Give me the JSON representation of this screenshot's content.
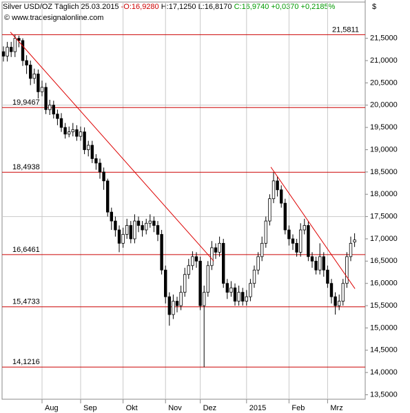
{
  "chart_data": {
    "type": "candlestick",
    "header": {
      "symbol": "Silver USD/OZ Täglich",
      "date": "25.03.2015",
      "open": "-O:16,9280",
      "high": "H:17,1250",
      "low": "L:16,8170",
      "close": "C:16,9740",
      "change": "+0,0370",
      "change_pct": "+0,2185%"
    },
    "source": "© www.tradesignalonline.com",
    "y_unit": "$",
    "ylim": [
      13.4,
      22.36
    ],
    "yticks": [
      {
        "value": 13.5,
        "label": "13,5000"
      },
      {
        "value": 14,
        "label": "14,0000"
      },
      {
        "value": 14.5,
        "label": "14,5000"
      },
      {
        "value": 15,
        "label": "15,0000"
      },
      {
        "value": 15.5,
        "label": "15,5000"
      },
      {
        "value": 16,
        "label": "16,0000"
      },
      {
        "value": 16.5,
        "label": "16,5000"
      },
      {
        "value": 17,
        "label": "17,0000"
      },
      {
        "value": 17.5,
        "label": "17,5000"
      },
      {
        "value": 18,
        "label": "18,0000"
      },
      {
        "value": 18.5,
        "label": "18,5000"
      },
      {
        "value": 19,
        "label": "19,0000"
      },
      {
        "value": 19.5,
        "label": "19,5000"
      },
      {
        "value": 20,
        "label": "20,0000"
      },
      {
        "value": 20.5,
        "label": "20,5000"
      },
      {
        "value": 21,
        "label": "21,0000"
      },
      {
        "value": 21.5,
        "label": "21,5000"
      }
    ],
    "grid_values": [
      17.5,
      20
    ],
    "categories": [
      null,
      null,
      null,
      null,
      null,
      null,
      null,
      null,
      null,
      null,
      "Aug",
      null,
      null,
      null,
      null,
      null,
      null,
      null,
      null,
      null,
      "Sep",
      null,
      null,
      null,
      null,
      null,
      null,
      null,
      null,
      null,
      null,
      "Okt",
      null,
      null,
      null,
      null,
      null,
      null,
      null,
      null,
      null,
      null,
      "Nov",
      null,
      null,
      null,
      null,
      null,
      null,
      null,
      null,
      "Dez",
      null,
      null,
      null,
      null,
      null,
      null,
      null,
      null,
      null,
      null,
      null,
      "2015",
      null,
      null,
      null,
      null,
      null,
      null,
      null,
      null,
      null,
      null,
      "Feb",
      null,
      null,
      null,
      null,
      null,
      null,
      null,
      null,
      null,
      "Mrz",
      null,
      null,
      null,
      null,
      null,
      null,
      null
    ],
    "open": [
      21.2,
      21.1,
      21.3,
      21.2,
      21.5,
      21.45,
      21.0,
      20.9,
      20.6,
      20.7,
      20.3,
      20.4,
      19.9,
      20.0,
      19.8,
      19.7,
      19.5,
      19.35,
      19.4,
      19.45,
      19.3,
      19.4,
      19.0,
      19.1,
      18.8,
      18.7,
      18.5,
      18.3,
      17.6,
      17.4,
      17.2,
      16.9,
      17.1,
      17.3,
      17.0,
      17.4,
      17.3,
      17.2,
      17.35,
      17.4,
      17.3,
      17.1,
      16.3,
      15.7,
      15.3,
      15.6,
      15.5,
      15.8,
      16.2,
      16.4,
      16.6,
      16.5,
      15.5,
      15.8,
      16.4,
      16.8,
      16.7,
      16.9,
      16.0,
      15.8,
      15.9,
      15.6,
      15.8,
      15.6,
      15.7,
      16.0,
      16.3,
      16.6,
      16.9,
      17.4,
      17.9,
      18.3,
      18.1,
      17.8,
      17.2,
      17.0,
      16.9,
      16.7,
      17.2,
      17.3,
      16.6,
      16.5,
      16.3,
      16.6,
      16.3,
      16.0,
      15.7,
      15.5,
      15.6,
      16.0,
      16.6,
      16.928
    ],
    "high": [
      21.32,
      21.42,
      21.42,
      21.58,
      21.56,
      21.5,
      21.12,
      21.0,
      20.82,
      20.8,
      20.55,
      20.5,
      20.12,
      20.1,
      19.9,
      19.82,
      19.6,
      19.52,
      19.6,
      19.55,
      19.52,
      19.5,
      19.2,
      19.2,
      18.9,
      18.8,
      18.6,
      18.35,
      17.7,
      17.5,
      17.3,
      17.25,
      17.45,
      17.4,
      17.55,
      17.5,
      17.4,
      17.45,
      17.55,
      17.5,
      17.4,
      17.2,
      16.4,
      15.8,
      15.75,
      15.7,
      15.95,
      16.35,
      16.55,
      16.72,
      16.7,
      16.6,
      15.95,
      16.5,
      16.95,
      16.9,
      17.05,
      17.0,
      16.1,
      16.05,
      16.0,
      15.95,
      15.9,
      15.85,
      16.1,
      16.4,
      16.7,
      17.05,
      17.5,
      18.0,
      18.49,
      18.4,
      18.2,
      17.9,
      17.3,
      17.1,
      17.0,
      17.35,
      17.45,
      17.4,
      16.7,
      16.6,
      16.9,
      16.7,
      16.4,
      16.1,
      15.8,
      15.75,
      16.1,
      16.7,
      17.05,
      17.125
    ],
    "low": [
      20.98,
      20.98,
      21.08,
      21.08,
      21.3,
      20.88,
      20.7,
      20.45,
      20.48,
      20.15,
      20.2,
      19.8,
      19.78,
      19.7,
      19.55,
      19.4,
      19.25,
      19.28,
      19.3,
      19.2,
      19.2,
      18.9,
      18.85,
      18.7,
      18.55,
      18.35,
      18.1,
      17.5,
      17.2,
      17.05,
      16.7,
      16.8,
      17.0,
      16.9,
      16.9,
      17.15,
      17.05,
      17.1,
      17.25,
      17.15,
      16.95,
      16.2,
      15.55,
      15.05,
      15.2,
      15.35,
      15.4,
      15.7,
      16.1,
      16.3,
      16.35,
      15.4,
      14.12,
      15.7,
      16.3,
      16.55,
      16.6,
      15.9,
      15.65,
      15.7,
      15.5,
      15.5,
      15.5,
      15.5,
      15.6,
      15.9,
      16.2,
      16.5,
      16.8,
      17.3,
      17.8,
      17.95,
      17.7,
      17.1,
      16.85,
      16.75,
      16.6,
      16.6,
      17.1,
      16.5,
      16.35,
      16.2,
      16.2,
      16.15,
      15.9,
      15.55,
      15.3,
      15.4,
      15.5,
      15.9,
      16.5,
      16.817
    ],
    "close": [
      21.1,
      21.3,
      21.2,
      21.5,
      21.45,
      21.0,
      20.9,
      20.6,
      20.7,
      20.3,
      20.4,
      19.9,
      20.0,
      19.8,
      19.7,
      19.5,
      19.35,
      19.4,
      19.45,
      19.3,
      19.4,
      19.0,
      19.1,
      18.8,
      18.7,
      18.5,
      18.3,
      17.6,
      17.4,
      17.2,
      16.9,
      17.1,
      17.3,
      17.0,
      17.4,
      17.3,
      17.2,
      17.35,
      17.4,
      17.3,
      17.1,
      16.3,
      15.7,
      15.3,
      15.6,
      15.5,
      15.8,
      16.2,
      16.4,
      16.6,
      16.5,
      15.5,
      15.8,
      16.4,
      16.8,
      16.7,
      16.9,
      16.0,
      15.8,
      15.9,
      15.6,
      15.8,
      15.6,
      15.7,
      16.0,
      16.3,
      16.6,
      16.9,
      17.4,
      17.9,
      18.3,
      18.1,
      17.8,
      17.2,
      17.0,
      16.9,
      16.7,
      17.2,
      17.3,
      16.6,
      16.5,
      16.3,
      16.6,
      16.3,
      16.0,
      15.7,
      15.5,
      15.6,
      16.0,
      16.6,
      16.9,
      16.974
    ],
    "levels": [
      {
        "value": 21.5811,
        "label": "21,5811",
        "side": "right"
      },
      {
        "value": 19.9467,
        "label": "19,9467",
        "side": "left"
      },
      {
        "value": 18.4938,
        "label": "18,4938",
        "side": "left"
      },
      {
        "value": 16.6461,
        "label": "16,6461",
        "side": "left"
      },
      {
        "value": 15.4733,
        "label": "15,4733",
        "side": "left"
      },
      {
        "value": 14.1216,
        "label": "14,1216",
        "side": "left"
      }
    ],
    "level_color": "#cc0000",
    "trendlines": [
      {
        "x": [
          1.8,
          54.5
        ],
        "y": [
          21.64,
          16.5
        ]
      },
      {
        "x": [
          69.3,
          91.1
        ],
        "y": [
          18.61,
          15.88
        ]
      }
    ],
    "trend_color": "#dd0000",
    "up_color": "#ffffff",
    "down_color": "#000000"
  }
}
